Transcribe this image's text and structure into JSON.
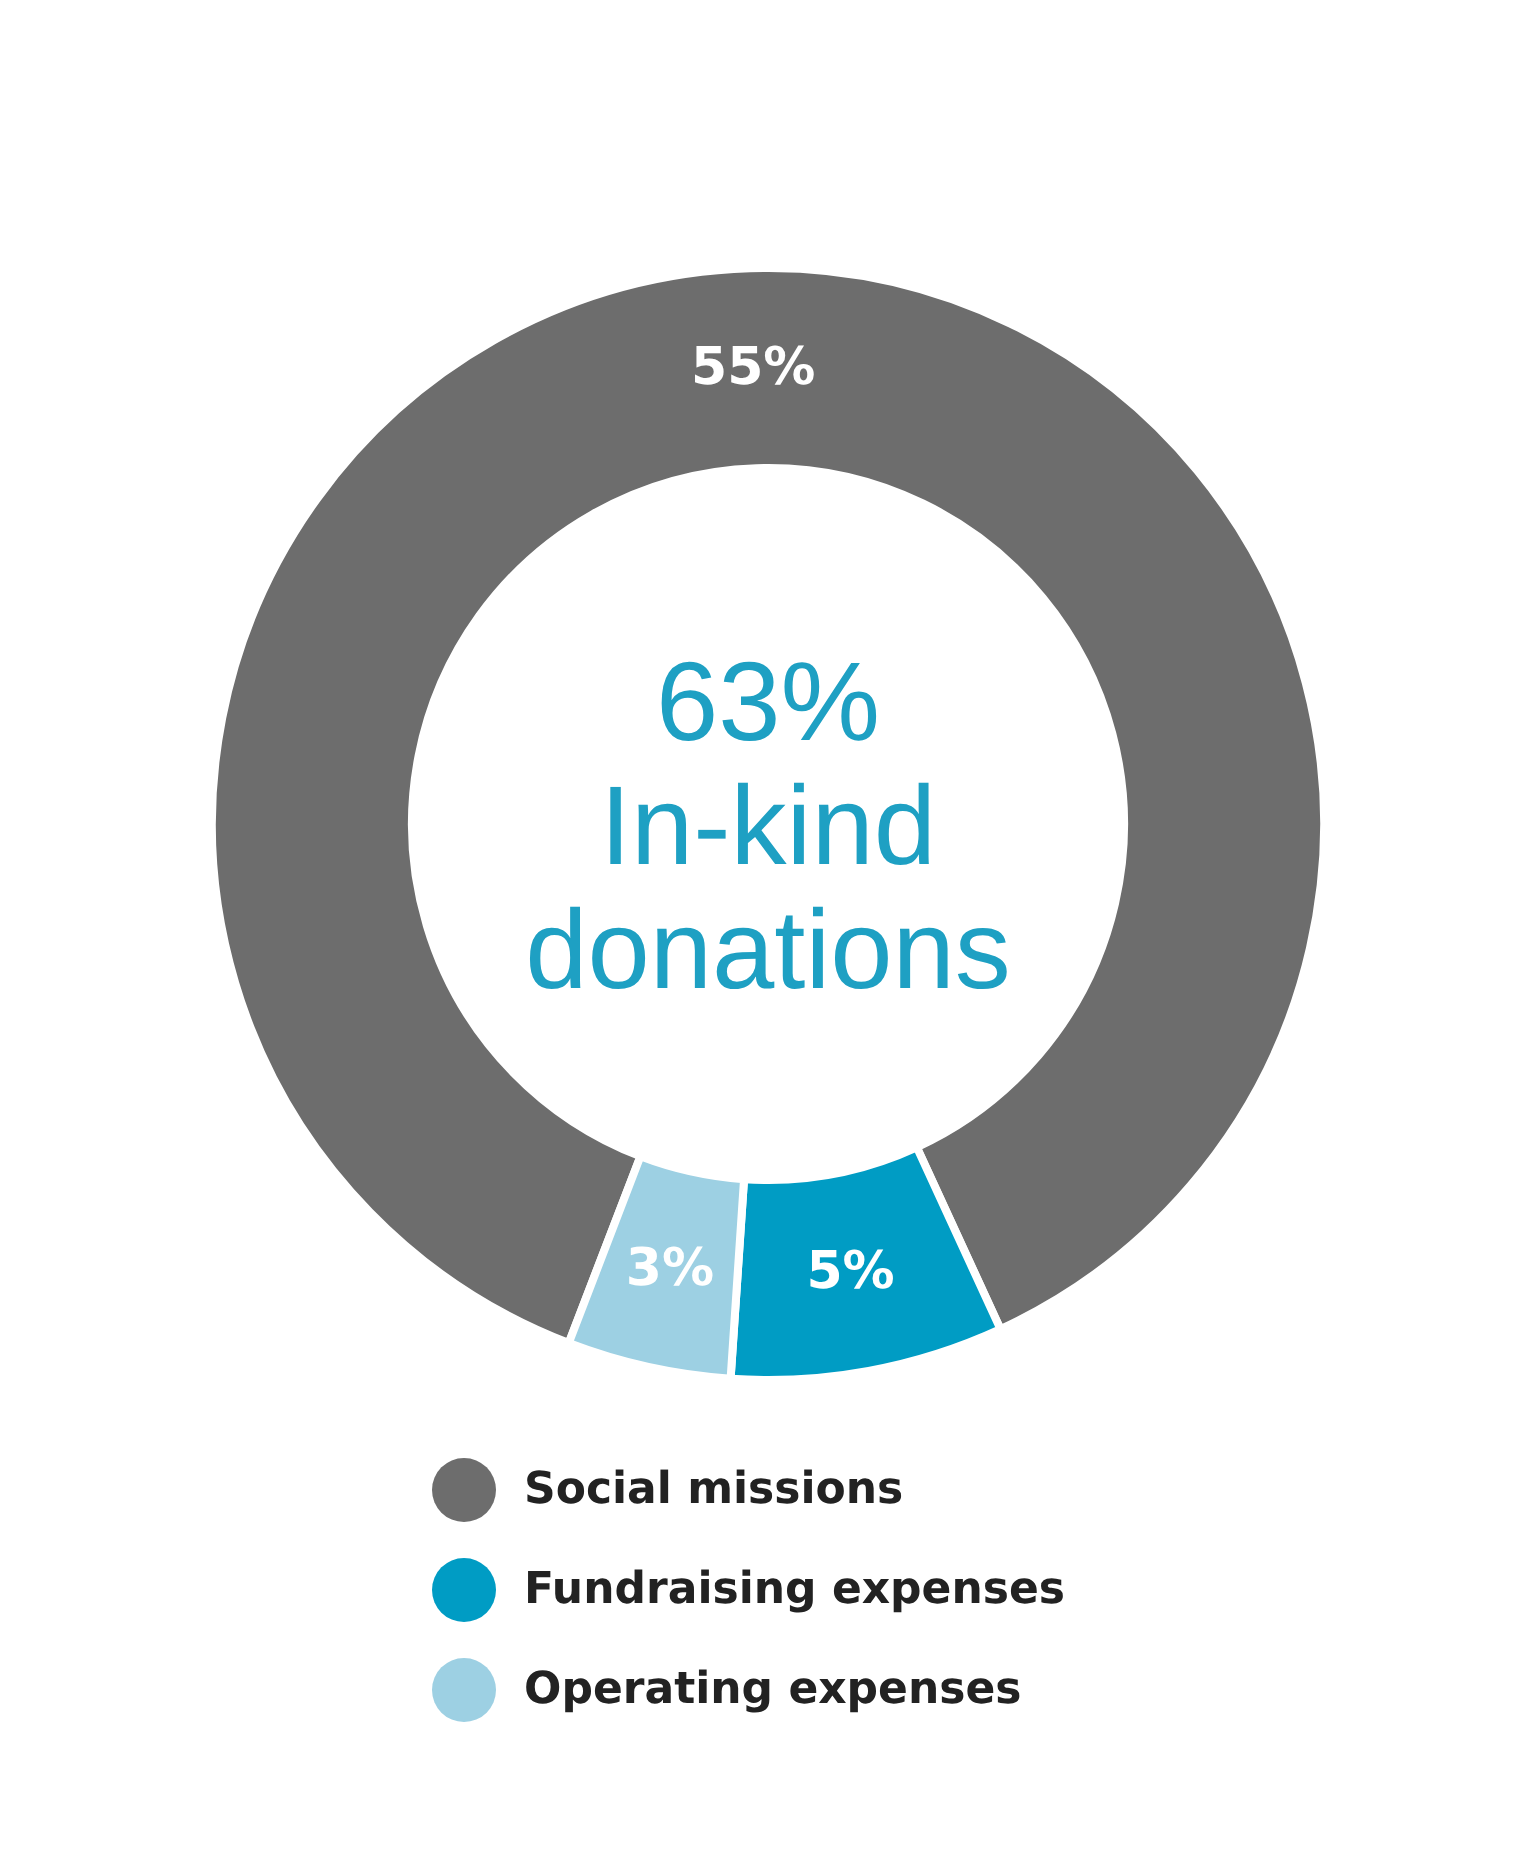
{
  "chart_data": {
    "type": "donut",
    "title": "63% In-kind donations",
    "categories": [
      "Social missions",
      "Fundraising expenses",
      "Operating expenses"
    ],
    "values": [
      55,
      5,
      3
    ],
    "colors": [
      "#6d6d6d",
      "#009cc4",
      "#9dd0e3"
    ],
    "value_labels": [
      "55%",
      "5%",
      "3%"
    ],
    "legend": "bottom"
  }
}
